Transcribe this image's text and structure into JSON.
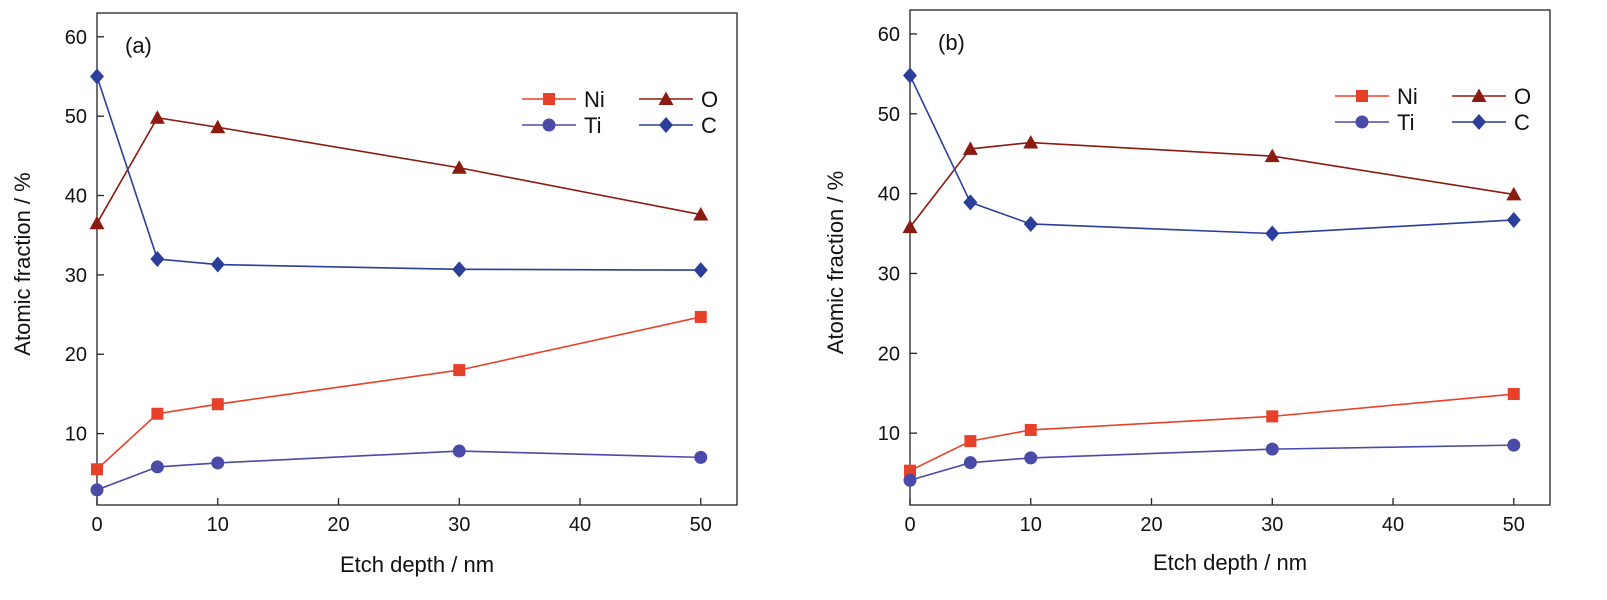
{
  "chart_data": [
    {
      "type": "line",
      "panel_label": "(a)",
      "xlabel": "Etch depth / nm",
      "ylabel": "Atomic fraction / %",
      "xlim": [
        0,
        53
      ],
      "ylim": [
        1,
        63
      ],
      "x_ticks": [
        0,
        10,
        20,
        30,
        40,
        50
      ],
      "y_ticks": [
        10,
        20,
        30,
        40,
        50,
        60
      ],
      "grid": false,
      "legend_placement": "top-right",
      "x": [
        0,
        5,
        10,
        30,
        50
      ],
      "series": [
        {
          "name": "Ni",
          "marker": "square",
          "color": "#e8412a",
          "values": [
            5.5,
            12.5,
            13.7,
            18.0,
            24.7
          ]
        },
        {
          "name": "O",
          "marker": "triangle",
          "color": "#8b1a10",
          "values": [
            36.5,
            49.8,
            48.6,
            43.5,
            37.6
          ]
        },
        {
          "name": "Ti",
          "marker": "circle",
          "color": "#4a4aa8",
          "values": [
            2.9,
            5.8,
            6.3,
            7.8,
            7.0
          ]
        },
        {
          "name": "C",
          "marker": "diamond",
          "color": "#2a3e9a",
          "values": [
            55.0,
            32.0,
            31.3,
            30.7,
            30.6
          ]
        }
      ]
    },
    {
      "type": "line",
      "panel_label": "(b)",
      "xlabel": "Etch depth / nm",
      "ylabel": "Atomic fraction / %",
      "xlim": [
        0,
        53
      ],
      "ylim": [
        1,
        63
      ],
      "x_ticks": [
        0,
        10,
        20,
        30,
        40,
        50
      ],
      "y_ticks": [
        10,
        20,
        30,
        40,
        50,
        60
      ],
      "grid": false,
      "legend_placement": "top-right",
      "x": [
        0,
        5,
        10,
        30,
        50
      ],
      "series": [
        {
          "name": "Ni",
          "marker": "square",
          "color": "#e8412a",
          "values": [
            5.3,
            9.0,
            10.4,
            12.1,
            14.9
          ]
        },
        {
          "name": "O",
          "marker": "triangle",
          "color": "#8b1a10",
          "values": [
            35.8,
            45.6,
            46.4,
            44.7,
            39.9
          ]
        },
        {
          "name": "Ti",
          "marker": "circle",
          "color": "#4a4aa8",
          "values": [
            4.1,
            6.3,
            6.9,
            8.0,
            8.5
          ]
        },
        {
          "name": "C",
          "marker": "diamond",
          "color": "#2a3e9a",
          "values": [
            54.8,
            38.9,
            36.2,
            35.0,
            36.7
          ]
        }
      ]
    }
  ]
}
